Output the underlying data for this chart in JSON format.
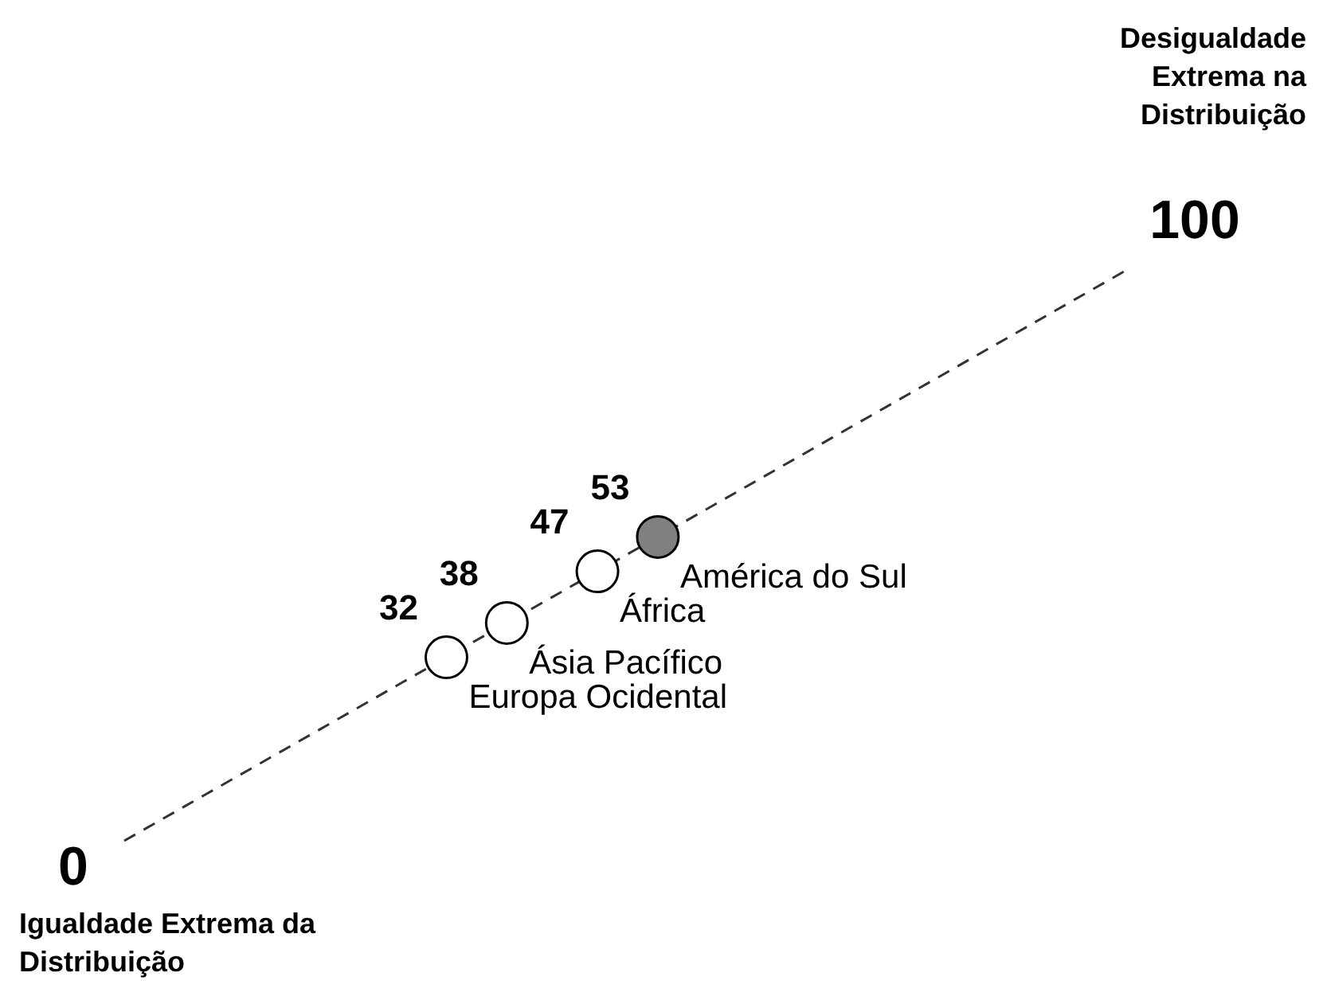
{
  "chart_data": {
    "type": "other",
    "categories": [
      "Europa Ocidental",
      "Ásia Pacífico",
      "África",
      "América do Sul"
    ],
    "values": [
      32,
      38,
      47,
      53
    ],
    "colors": [
      "#ffffff",
      "#ffffff",
      "#ffffff",
      "#808080"
    ],
    "data_labels": true,
    "annotations": [
      "Desigualdade Extrema na Distribuição",
      "Igualdade Extrema da Distribuição",
      "0",
      "100"
    ]
  }
}
